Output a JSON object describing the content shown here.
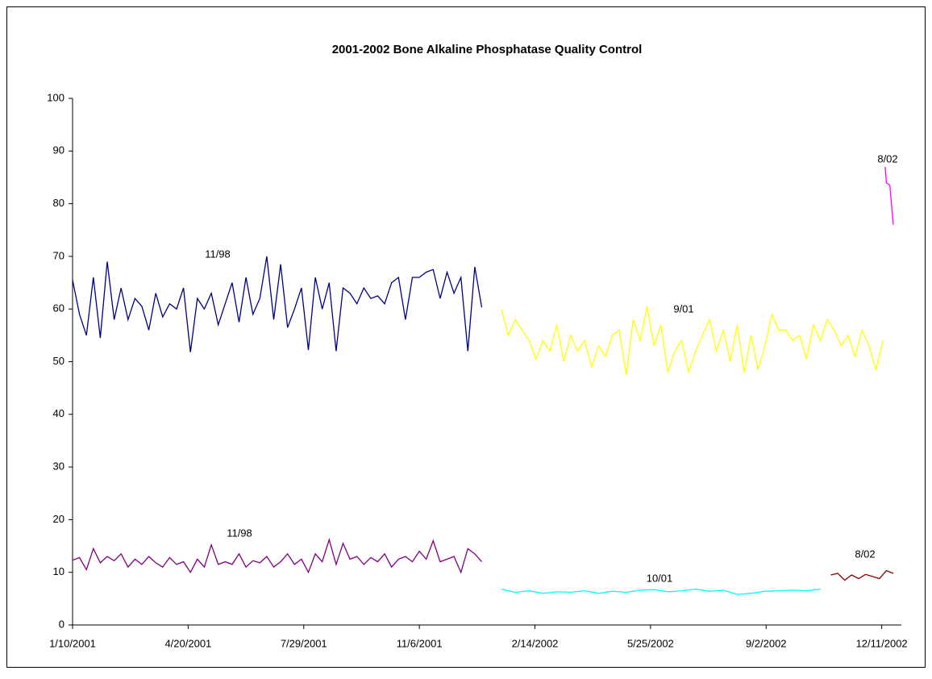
{
  "chart_data": {
    "type": "line",
    "title": "2001-2002 Bone Alkaline Phosphatase Quality Control",
    "xlim": [
      "1/10/2001",
      "12/28/2002"
    ],
    "xticks": [
      "1/10/2001",
      "4/20/2001",
      "7/29/2001",
      "11/6/2001",
      "2/14/2002",
      "5/25/2002",
      "9/2/2002",
      "12/11/2002"
    ],
    "ylim": [
      0,
      100
    ],
    "yticks": [
      0,
      10,
      20,
      30,
      40,
      50,
      60,
      70,
      80,
      90,
      100
    ],
    "grid": false,
    "annotations": [
      "11/98",
      "11/98",
      "9/01",
      "10/01",
      "8/02",
      "8/02"
    ],
    "series": [
      {
        "color": "#000080",
        "x": [
          "1/10/2001",
          "1/16/2001",
          "1/22/2001",
          "1/28/2001",
          "2/3/2001",
          "2/9/2001",
          "2/15/2001",
          "2/21/2001",
          "2/27/2001",
          "3/5/2001",
          "3/11/2001",
          "3/17/2001",
          "3/23/2001",
          "3/29/2001",
          "4/4/2001",
          "4/10/2001",
          "4/16/2001",
          "4/22/2001",
          "4/28/2001",
          "5/4/2001",
          "5/10/2001",
          "5/16/2001",
          "5/22/2001",
          "5/28/2001",
          "6/3/2001",
          "6/9/2001",
          "6/15/2001",
          "6/21/2001",
          "6/27/2001",
          "7/3/2001",
          "7/9/2001",
          "7/15/2001",
          "7/21/2001",
          "7/27/2001",
          "8/2/2001",
          "8/8/2001",
          "8/14/2001",
          "8/20/2001",
          "8/26/2001",
          "9/1/2001",
          "9/7/2001",
          "9/13/2001",
          "9/19/2001",
          "9/25/2001",
          "10/1/2001",
          "10/7/2001",
          "10/13/2001",
          "10/19/2001",
          "10/25/2001",
          "10/31/2001",
          "11/6/2001",
          "11/12/2001",
          "11/18/2001",
          "11/24/2001",
          "11/30/2001",
          "12/6/2001",
          "12/12/2001",
          "12/18/2001",
          "12/24/2001",
          "12/30/2001"
        ],
        "values": [
          65.5,
          59,
          55,
          66,
          54.5,
          69,
          58,
          64,
          58,
          62,
          60.5,
          56,
          63,
          58.5,
          61,
          60,
          64,
          51.8,
          62,
          60,
          63,
          57,
          61,
          65,
          57.5,
          66,
          59,
          62,
          70,
          58,
          68.5,
          56.5,
          60,
          64,
          52.2,
          66,
          60,
          65,
          52,
          64,
          63,
          61,
          64,
          62,
          62.5,
          61,
          65,
          66,
          58,
          66,
          66,
          67,
          67.5,
          62,
          67,
          63,
          66,
          52,
          68,
          60.3
        ]
      },
      {
        "color": "#800080",
        "x": [
          "1/10/2001",
          "1/16/2001",
          "1/22/2001",
          "1/28/2001",
          "2/3/2001",
          "2/9/2001",
          "2/15/2001",
          "2/21/2001",
          "2/27/2001",
          "3/5/2001",
          "3/11/2001",
          "3/17/2001",
          "3/23/2001",
          "3/29/2001",
          "4/4/2001",
          "4/10/2001",
          "4/16/2001",
          "4/22/2001",
          "4/28/2001",
          "5/4/2001",
          "5/10/2001",
          "5/16/2001",
          "5/22/2001",
          "5/28/2001",
          "6/3/2001",
          "6/9/2001",
          "6/15/2001",
          "6/21/2001",
          "6/27/2001",
          "7/3/2001",
          "7/9/2001",
          "7/15/2001",
          "7/21/2001",
          "7/27/2001",
          "8/2/2001",
          "8/8/2001",
          "8/14/2001",
          "8/20/2001",
          "8/26/2001",
          "9/1/2001",
          "9/7/2001",
          "9/13/2001",
          "9/19/2001",
          "9/25/2001",
          "10/1/2001",
          "10/7/2001",
          "10/13/2001",
          "10/19/2001",
          "10/25/2001",
          "10/31/2001",
          "11/6/2001",
          "11/12/2001",
          "11/18/2001",
          "11/24/2001",
          "11/30/2001",
          "12/6/2001",
          "12/12/2001",
          "12/18/2001",
          "12/24/2001",
          "12/30/2001"
        ],
        "values": [
          12.3,
          12.8,
          10.5,
          14.5,
          11.8,
          13,
          12.2,
          13.5,
          11,
          12.5,
          11.5,
          13,
          11.8,
          11,
          12.8,
          11.5,
          12,
          10,
          12.5,
          11,
          15.2,
          11.5,
          12,
          11.5,
          13.5,
          11,
          12.2,
          11.8,
          13,
          11,
          12,
          13.5,
          11.5,
          12.5,
          10,
          13.5,
          12,
          16.2,
          11.5,
          15.5,
          12.5,
          13,
          11.5,
          12.8,
          12,
          13.5,
          11,
          12.5,
          13,
          12,
          14,
          12.5,
          16,
          12,
          12.5,
          13,
          10,
          14.5,
          13.5,
          12
        ]
      },
      {
        "color": "#ffff00",
        "x": [
          "1/16/2002",
          "1/22/2002",
          "1/28/2002",
          "2/3/2002",
          "2/9/2002",
          "2/15/2002",
          "2/21/2002",
          "2/27/2002",
          "3/5/2002",
          "3/11/2002",
          "3/17/2002",
          "3/23/2002",
          "3/29/2002",
          "4/4/2002",
          "4/10/2002",
          "4/16/2002",
          "4/22/2002",
          "4/28/2002",
          "5/4/2002",
          "5/10/2002",
          "5/16/2002",
          "5/22/2002",
          "5/28/2002",
          "6/3/2002",
          "6/9/2002",
          "6/15/2002",
          "6/21/2002",
          "6/27/2002",
          "7/3/2002",
          "7/9/2002",
          "7/15/2002",
          "7/21/2002",
          "7/27/2002",
          "8/2/2002",
          "8/8/2002",
          "8/14/2002",
          "8/20/2002",
          "8/26/2002",
          "9/1/2002",
          "9/7/2002",
          "9/13/2002",
          "9/19/2002",
          "9/25/2002",
          "10/1/2002",
          "10/7/2002",
          "10/13/2002",
          "10/19/2002",
          "10/25/2002",
          "10/31/2002",
          "11/6/2002",
          "11/12/2002",
          "11/18/2002",
          "11/24/2002",
          "11/30/2002",
          "12/6/2002",
          "12/12/2002"
        ],
        "values": [
          60,
          55,
          58,
          56,
          54,
          50.5,
          54,
          52,
          57,
          50,
          55,
          52,
          54,
          49,
          53,
          51,
          55,
          56,
          47.5,
          58,
          54,
          60.5,
          53,
          57,
          48,
          52,
          54,
          48,
          52,
          55,
          58,
          52,
          56,
          50,
          57,
          48,
          55,
          48.5,
          53,
          59,
          56,
          56,
          54,
          55,
          50.5,
          57,
          54,
          58,
          56,
          53,
          55,
          51,
          56,
          53,
          48.5,
          54
        ]
      },
      {
        "color": "#00ffff",
        "x": [
          "1/16/2002",
          "1/28/2002",
          "2/9/2002",
          "2/21/2002",
          "3/5/2002",
          "3/17/2002",
          "3/29/2002",
          "4/10/2002",
          "4/22/2002",
          "5/4/2002",
          "5/16/2002",
          "5/28/2002",
          "6/9/2002",
          "6/21/2002",
          "7/3/2002",
          "7/15/2002",
          "7/27/2002",
          "8/8/2002",
          "8/20/2002",
          "9/1/2002",
          "9/13/2002",
          "9/25/2002",
          "10/7/2002",
          "10/19/2002"
        ],
        "values": [
          6.8,
          6.2,
          6.5,
          6,
          6.3,
          6.2,
          6.5,
          6,
          6.4,
          6.2,
          6.6,
          6.7,
          6.3,
          6.5,
          6.8,
          6.4,
          6.6,
          5.8,
          6,
          6.4,
          6.5,
          6.6,
          6.5,
          6.8
        ]
      },
      {
        "color": "#800000",
        "x": [
          "10/28/2002",
          "11/3/2002",
          "11/9/2002",
          "11/15/2002",
          "11/21/2002",
          "11/27/2002",
          "12/3/2002",
          "12/9/2002",
          "12/15/2002",
          "12/21/2002"
        ],
        "values": [
          9.5,
          9.8,
          8.5,
          9.5,
          8.8,
          9.6,
          9.2,
          8.8,
          10.3,
          9.8
        ]
      },
      {
        "color": "#ff00ff",
        "x": [
          "12/14/2002",
          "12/15/2002",
          "12/18/2002",
          "12/21/2002"
        ],
        "values": [
          87,
          84,
          83.5,
          76
        ]
      }
    ]
  }
}
